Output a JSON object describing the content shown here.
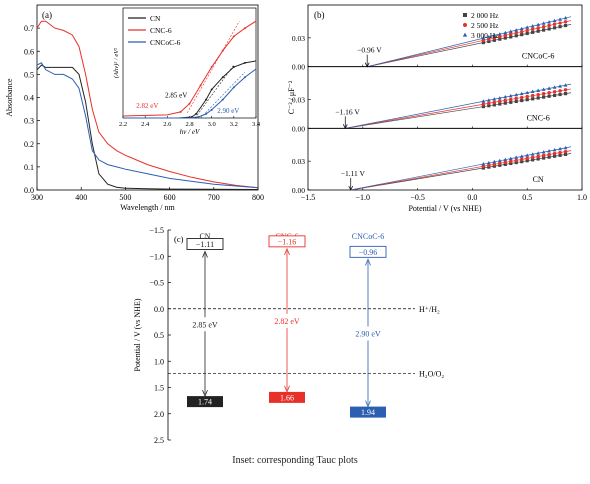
{
  "caption": "Inset: corresponding Tauc plots",
  "colors": {
    "cn": "#222222",
    "cnc6": "#e8302a",
    "cncoc6": "#2c5fb0"
  },
  "chart_data": [
    {
      "panel": "(a)",
      "type": "line",
      "xlabel": "Wavelength / nm",
      "ylabel": "Absorbance",
      "xlim": [
        300,
        800
      ],
      "ylim": [
        0.0,
        0.8
      ],
      "xticks": [
        300,
        400,
        500,
        600,
        700,
        800
      ],
      "yticks": [
        0.0,
        0.1,
        0.2,
        0.3,
        0.4,
        0.5,
        0.6,
        0.7
      ],
      "legend": "top-right (inside inset)",
      "series": [
        {
          "name": "CN",
          "color": "#222222",
          "x": [
            300,
            310,
            320,
            340,
            360,
            380,
            395,
            410,
            425,
            440,
            460,
            480,
            500,
            550,
            600,
            700,
            800
          ],
          "y": [
            0.52,
            0.54,
            0.53,
            0.53,
            0.53,
            0.53,
            0.5,
            0.38,
            0.2,
            0.07,
            0.025,
            0.012,
            0.008,
            0.005,
            0.004,
            0.003,
            0.002
          ]
        },
        {
          "name": "CNC-6",
          "color": "#e8302a",
          "x": [
            300,
            310,
            320,
            340,
            360,
            380,
            395,
            410,
            425,
            440,
            460,
            480,
            500,
            550,
            600,
            650,
            700,
            750,
            800
          ],
          "y": [
            0.7,
            0.73,
            0.73,
            0.7,
            0.69,
            0.67,
            0.62,
            0.5,
            0.35,
            0.25,
            0.2,
            0.17,
            0.15,
            0.11,
            0.08,
            0.055,
            0.035,
            0.02,
            0.01
          ]
        },
        {
          "name": "CNCoC-6",
          "color": "#2c5fb0",
          "x": [
            300,
            310,
            320,
            340,
            360,
            380,
            395,
            410,
            425,
            440,
            460,
            480,
            500,
            550,
            600,
            700,
            800
          ],
          "y": [
            0.54,
            0.55,
            0.52,
            0.5,
            0.5,
            0.48,
            0.44,
            0.32,
            0.17,
            0.13,
            0.11,
            0.1,
            0.09,
            0.07,
            0.05,
            0.025,
            0.01
          ]
        }
      ],
      "inset": {
        "xlabel": "hν / eV",
        "ylabel": "(Ahν)² / eV²",
        "xlim": [
          2.2,
          3.4
        ],
        "xticks": [
          2.2,
          2.4,
          2.6,
          2.8,
          3.0,
          3.2,
          3.4
        ],
        "annotations": [
          "2.85 eV",
          "2.82 eV",
          "2.90 eV"
        ],
        "series": [
          {
            "name": "CN",
            "color": "#222222",
            "x": [
              2.2,
              2.7,
              2.82,
              2.86,
              2.95,
              3.0,
              3.1,
              3.2,
              3.3,
              3.4
            ],
            "y": [
              0.0,
              0.0,
              0.01,
              0.04,
              0.18,
              0.28,
              0.4,
              0.5,
              0.54,
              0.56
            ]
          },
          {
            "name": "CNC-6",
            "color": "#e8302a",
            "x": [
              2.2,
              2.6,
              2.72,
              2.8,
              2.9,
              3.0,
              3.1,
              3.2,
              3.3,
              3.4
            ],
            "y": [
              0.02,
              0.03,
              0.06,
              0.14,
              0.32,
              0.5,
              0.66,
              0.8,
              0.88,
              0.95
            ]
          },
          {
            "name": "CNCoC-6",
            "color": "#2c5fb0",
            "x": [
              2.2,
              2.8,
              2.88,
              2.95,
              3.0,
              3.1,
              3.2,
              3.3,
              3.4
            ],
            "y": [
              0.0,
              0.0,
              0.01,
              0.04,
              0.08,
              0.18,
              0.3,
              0.4,
              0.48
            ]
          }
        ]
      }
    },
    {
      "panel": "(b)",
      "type": "scatter",
      "xlabel": "Potential / V (vs NHE)",
      "ylabel": "C⁻² / μF⁻²",
      "xlim": [
        -1.5,
        1.0
      ],
      "xticks": [
        -1.5,
        -1.0,
        -0.5,
        0.0,
        0.5,
        1.0
      ],
      "ylim": [
        0.0,
        0.06
      ],
      "yticks": [
        0.0,
        0.03
      ],
      "legend": "top-right",
      "legend_items": [
        {
          "name": "2 000 Hz",
          "marker": "square",
          "color": "#444444"
        },
        {
          "name": "2 500 Hz",
          "marker": "circle",
          "color": "#e8302a"
        },
        {
          "name": "3 000 Hz",
          "marker": "triangle",
          "color": "#2c5fb0"
        }
      ],
      "subpanels": [
        {
          "label": "CNCoC-6",
          "flatband_label": "−0.96 V",
          "flatband": -0.96,
          "slopes": [
            0.044,
            0.048,
            0.052
          ]
        },
        {
          "label": "CNC-6",
          "flatband_label": "−1.16 V",
          "flatband": -1.16,
          "slopes": [
            0.037,
            0.041,
            0.046
          ]
        },
        {
          "label": "CN",
          "flatband_label": "−1.11 V",
          "flatband": -1.11,
          "slopes": [
            0.038,
            0.041,
            0.045
          ]
        }
      ],
      "points_x": [
        0.1,
        0.15,
        0.2,
        0.25,
        0.3,
        0.35,
        0.4,
        0.45,
        0.5,
        0.55,
        0.6,
        0.65,
        0.7,
        0.75,
        0.8,
        0.85
      ]
    },
    {
      "panel": "(c)",
      "type": "band diagram",
      "ylabel": "Potential / V (vs NHE)",
      "ylim": [
        -1.5,
        2.5
      ],
      "yticks": [
        -1.5,
        -1.0,
        -0.5,
        0.0,
        0.5,
        1.0,
        1.5,
        2.0,
        2.5
      ],
      "reference_lines": [
        {
          "label": "H⁺/H₂",
          "value": 0.0
        },
        {
          "label": "H₂O/O₂",
          "value": 1.23
        }
      ],
      "materials": [
        {
          "name": "CN",
          "cb": -1.11,
          "vb": 1.74,
          "cb_label": "−1.11",
          "vb_label": "1.74",
          "gap_label": "2.85 eV",
          "color": "#222222"
        },
        {
          "name": "CNC-6",
          "cb": -1.16,
          "vb": 1.66,
          "cb_label": "−1.16",
          "vb_label": "1.66",
          "gap_label": "2.82 eV",
          "color": "#e8302a"
        },
        {
          "name": "CNCoC-6",
          "cb": -0.96,
          "vb": 1.94,
          "cb_label": "−0.96",
          "vb_label": "1.94",
          "gap_label": "2.90 eV",
          "color": "#2c5fb0"
        }
      ]
    }
  ]
}
